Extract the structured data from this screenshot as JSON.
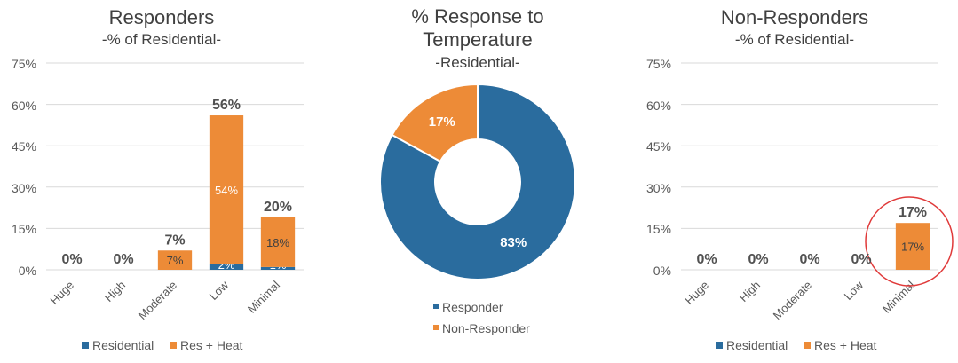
{
  "colors": {
    "residential": "#2a6c9e",
    "res_heat": "#ed8b37",
    "title": "#404040",
    "axis_text": "#595959",
    "total_label": "#505050",
    "grid": "#d9d9d9",
    "highlight": "#e03a3a"
  },
  "chart_data": [
    {
      "type": "bar",
      "stacked": true,
      "title": "Responders",
      "subtitle": "-% of Residential-",
      "categories": [
        "Huge",
        "High",
        "Moderate",
        "Low",
        "Minimal"
      ],
      "yticks": [
        "75%",
        "60%",
        "45%",
        "30%",
        "15%",
        "0%"
      ],
      "ylim": [
        0,
        75
      ],
      "grid": true,
      "legend_position": "bottom",
      "series": [
        {
          "name": "Residential",
          "values": [
            0,
            0,
            0,
            2,
            1
          ],
          "labels": [
            "",
            "",
            "",
            "2%",
            "1%"
          ]
        },
        {
          "name": "Res + Heat",
          "values": [
            0,
            0,
            7,
            54,
            18
          ],
          "labels": [
            "",
            "",
            "7%",
            "54%",
            "18%"
          ]
        }
      ],
      "totals": [
        "0%",
        "0%",
        "7%",
        "56%",
        "20%"
      ]
    },
    {
      "type": "pie",
      "donut": true,
      "title_lines": [
        "% Response to",
        "Temperature"
      ],
      "subtitle": "-Residential-",
      "legend_position": "bottom",
      "slices": [
        {
          "name": "Responder",
          "value": 83,
          "label": "83%"
        },
        {
          "name": "Non-Responder",
          "value": 17,
          "label": "17%"
        }
      ]
    },
    {
      "type": "bar",
      "stacked": true,
      "title": "Non-Responders",
      "subtitle": "-% of Residential-",
      "categories": [
        "Huge",
        "High",
        "Moderate",
        "Low",
        "Minimal"
      ],
      "yticks": [
        "75%",
        "60%",
        "45%",
        "30%",
        "15%",
        "0%"
      ],
      "ylim": [
        0,
        75
      ],
      "grid": true,
      "legend_position": "bottom",
      "series": [
        {
          "name": "Residential",
          "values": [
            0,
            0,
            0,
            0,
            0
          ],
          "labels": [
            "",
            "",
            "",
            "",
            ""
          ]
        },
        {
          "name": "Res + Heat",
          "values": [
            0,
            0,
            0,
            0,
            17
          ],
          "labels": [
            "",
            "",
            "",
            "",
            "17%"
          ]
        }
      ],
      "totals": [
        "0%",
        "0%",
        "0%",
        "0%",
        "17%"
      ],
      "highlight_category": "Minimal"
    }
  ]
}
